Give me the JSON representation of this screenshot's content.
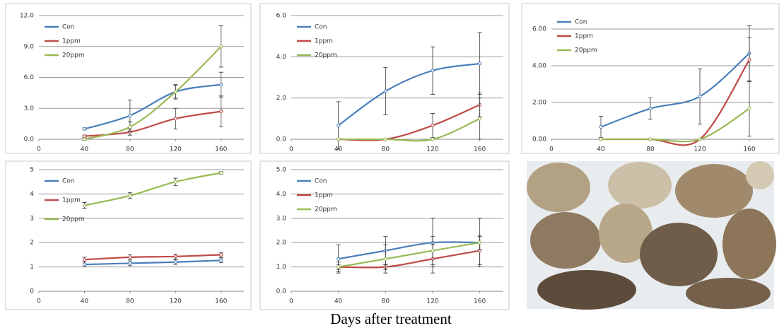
{
  "chart_data": [
    {
      "type": "line",
      "x": [
        40,
        80,
        120,
        160
      ],
      "xlim": [
        0,
        180
      ],
      "xticks": [
        0,
        40,
        80,
        120,
        160
      ],
      "ylim": [
        0,
        12
      ],
      "yticks": [
        {
          "value": 0,
          "label": "0.0"
        },
        {
          "value": 3,
          "label": "3.0"
        },
        {
          "value": 6,
          "label": "6.0"
        },
        {
          "value": 9,
          "label": "9.0"
        },
        {
          "value": 12,
          "label": "12.0"
        }
      ],
      "grid": true,
      "legend": "top-left",
      "series": [
        {
          "name": "Con",
          "color": "#4a7ebb",
          "values": [
            1.0,
            2.3,
            4.6,
            5.3
          ],
          "errors": [
            0.1,
            1.5,
            0.6,
            1.2
          ]
        },
        {
          "name": "1ppm",
          "color": "#be4b48",
          "values": [
            0.3,
            0.7,
            2.0,
            2.7
          ],
          "errors": [
            0.1,
            0.3,
            1.0,
            1.5
          ]
        },
        {
          "name": "20ppm",
          "color": "#98b954",
          "values": [
            0.0,
            1.2,
            4.6,
            9.0
          ],
          "errors": [
            0.1,
            0.5,
            0.7,
            2.0
          ]
        }
      ]
    },
    {
      "type": "line",
      "x": [
        40,
        80,
        120,
        160
      ],
      "xlim": [
        0,
        180
      ],
      "xticks": [
        0,
        40,
        80,
        120,
        160
      ],
      "ylim": [
        0,
        6
      ],
      "yticks": [
        {
          "value": 0,
          "label": "0.0"
        },
        {
          "value": 2,
          "label": "2.0"
        },
        {
          "value": 4,
          "label": "4.0"
        },
        {
          "value": 6,
          "label": "6.0"
        }
      ],
      "grid": true,
      "legend": "top-left",
      "series": [
        {
          "name": "Con",
          "color": "#4a7ebb",
          "values": [
            0.67,
            2.33,
            3.33,
            3.67
          ],
          "errors": [
            1.15,
            1.15,
            1.15,
            1.5
          ]
        },
        {
          "name": "1ppm",
          "color": "#be4b48",
          "values": [
            0,
            0,
            0.67,
            1.67
          ],
          "errors": [
            0,
            0,
            0.58,
            0.58
          ]
        },
        {
          "name": "20ppm",
          "color": "#98b954",
          "values": [
            0,
            0,
            0,
            1.0
          ],
          "errors": [
            0,
            0,
            0,
            1.0
          ]
        }
      ]
    },
    {
      "type": "line",
      "x": [
        40,
        80,
        120,
        160
      ],
      "xlim": [
        0,
        180
      ],
      "xticks": [
        0,
        40,
        80,
        120,
        160
      ],
      "ylim": [
        0,
        7
      ],
      "yticks": [
        {
          "value": 0,
          "label": "0.00"
        },
        {
          "value": 2,
          "label": "2.00"
        },
        {
          "value": 4,
          "label": "4.00"
        },
        {
          "value": 6,
          "label": "6.00"
        }
      ],
      "grid": true,
      "legend": "top-left",
      "series": [
        {
          "name": "Con",
          "color": "#4a7ebb",
          "values": [
            0.67,
            1.67,
            2.33,
            4.67
          ],
          "errors": [
            0.58,
            0.58,
            1.5,
            1.5
          ]
        },
        {
          "name": "1ppm",
          "color": "#be4b48",
          "values": [
            0,
            0,
            0,
            4.33
          ],
          "errors": [
            0,
            0,
            0,
            1.2
          ]
        },
        {
          "name": "20ppm",
          "color": "#98b954",
          "values": [
            0,
            0,
            0,
            1.67
          ],
          "errors": [
            0,
            0,
            0,
            1.5
          ]
        }
      ]
    },
    {
      "type": "line",
      "x": [
        40,
        80,
        120,
        160
      ],
      "xlim": [
        0,
        180
      ],
      "xticks": [
        0,
        40,
        80,
        120,
        160
      ],
      "ylim": [
        0,
        5
      ],
      "yticks": [
        0,
        1,
        2,
        3,
        4,
        5
      ],
      "grid": true,
      "legend": "top-left",
      "series": [
        {
          "name": "Con",
          "color": "#4a7ebb",
          "values": [
            1.1,
            1.15,
            1.2,
            1.27
          ],
          "errors": [
            0.1,
            0.1,
            0.1,
            0.1
          ]
        },
        {
          "name": "1ppm",
          "color": "#be4b48",
          "values": [
            1.3,
            1.4,
            1.43,
            1.5
          ],
          "errors": [
            0.1,
            0.1,
            0.1,
            0.1
          ]
        },
        {
          "name": "20ppm",
          "color": "#98b954",
          "values": [
            3.53,
            3.93,
            4.5,
            4.87
          ],
          "errors": [
            0.12,
            0.12,
            0.15,
            0.05
          ]
        }
      ]
    },
    {
      "type": "line",
      "x": [
        40,
        80,
        120,
        160
      ],
      "xlim": [
        0,
        180
      ],
      "xticks": [
        0,
        40,
        80,
        120,
        160
      ],
      "ylim": [
        0,
        5
      ],
      "yticks": [
        {
          "value": 0,
          "label": "0.0"
        },
        {
          "value": 1,
          "label": "1.0"
        },
        {
          "value": 2,
          "label": "2.0"
        },
        {
          "value": 3,
          "label": "3.0"
        },
        {
          "value": 4,
          "label": "4.0"
        },
        {
          "value": 5,
          "label": "5.0"
        }
      ],
      "grid": true,
      "legend": "top-left",
      "series": [
        {
          "name": "Con",
          "color": "#4a7ebb",
          "values": [
            1.33,
            1.67,
            2.0,
            2.0
          ],
          "errors": [
            0.58,
            0.58,
            1.0,
            1.0
          ]
        },
        {
          "name": "1ppm",
          "color": "#be4b48",
          "values": [
            1.0,
            1.0,
            1.33,
            1.67
          ],
          "errors": [
            0.1,
            0.1,
            0.58,
            0.58
          ]
        },
        {
          "name": "20ppm",
          "color": "#98b954",
          "values": [
            1.0,
            1.33,
            1.67,
            2.0
          ],
          "errors": [
            0.2,
            0.58,
            0.58,
            0.3
          ]
        }
      ]
    }
  ],
  "caption": "Days after treatment"
}
